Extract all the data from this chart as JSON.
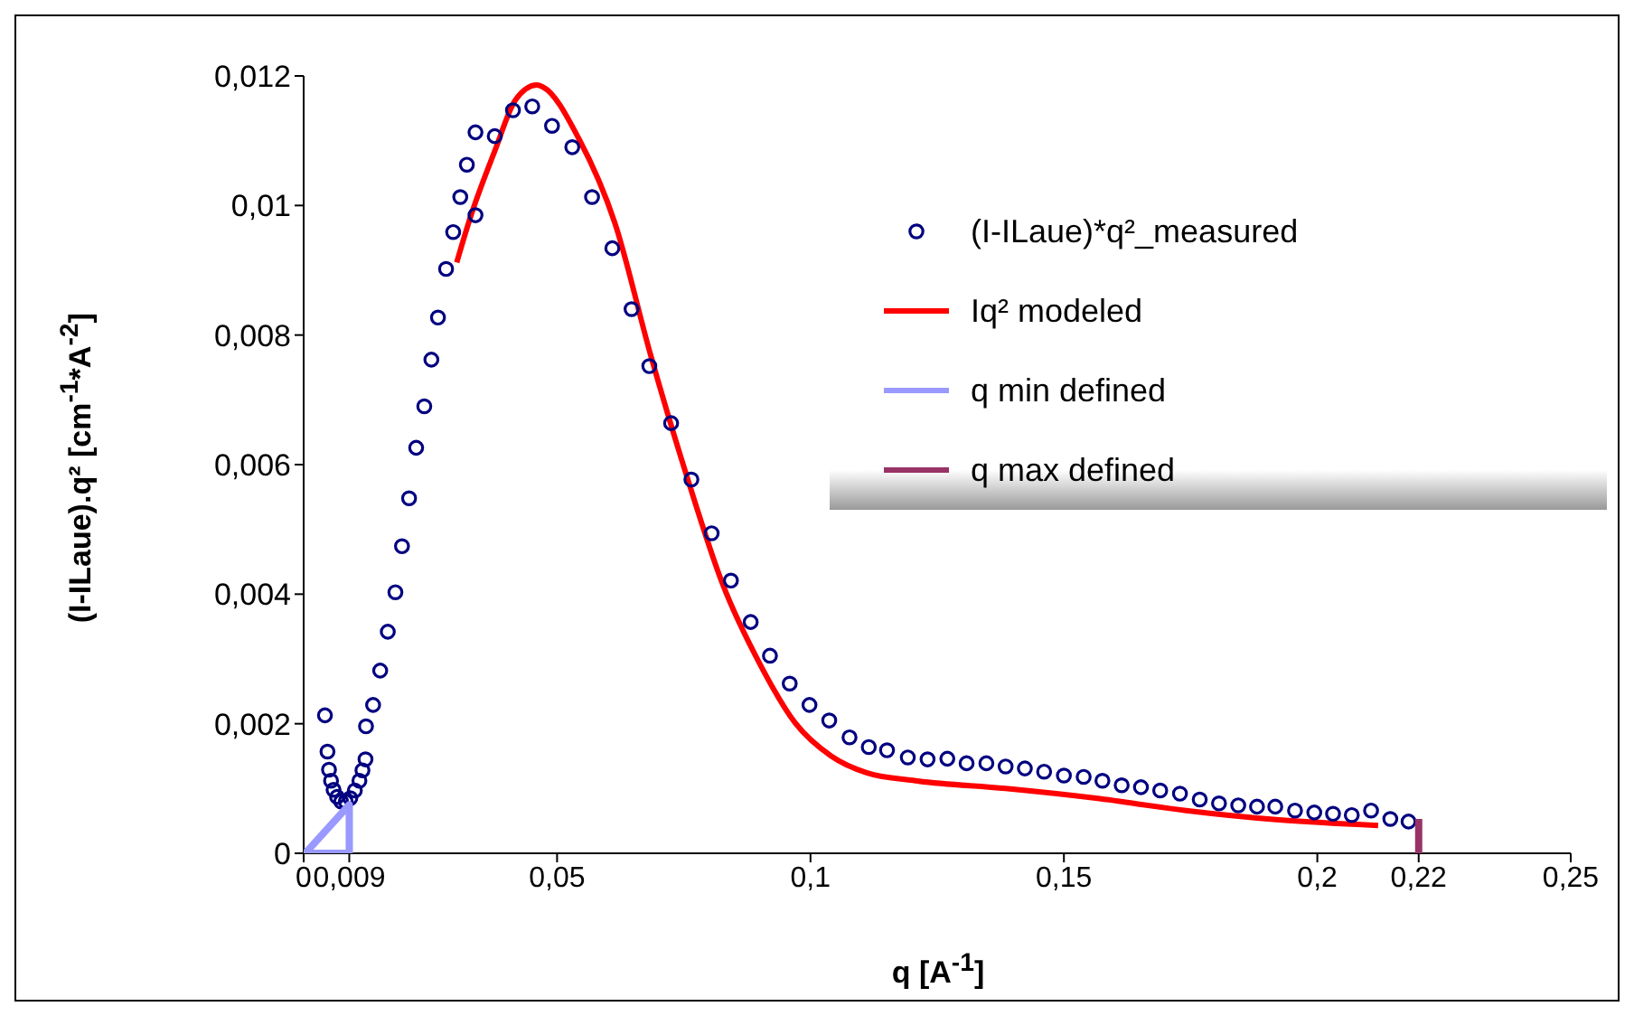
{
  "chart_data": {
    "type": "scatter",
    "xlabel": "q [A$^{-1}$]",
    "ylabel": "(I-ILaue).q² [cm$^{-1}$*A$^{-2}$]",
    "xlim": [
      0,
      0.25
    ],
    "xticks": [
      0,
      {
        "value": 0.009,
        "label": "0,009"
      },
      {
        "value": 0.05,
        "label": "0,05"
      },
      {
        "value": 0.1,
        "label": "0,1"
      },
      {
        "value": 0.15,
        "label": "0,15"
      },
      {
        "value": 0.2,
        "label": "0,2"
      },
      {
        "value": 0.22,
        "label": "0,22"
      },
      {
        "value": 0.25,
        "label": "0,25"
      }
    ],
    "ylim": [
      0,
      0.012
    ],
    "yticks": [
      0,
      {
        "value": 0.002,
        "label": "0,002"
      },
      {
        "value": 0.004,
        "label": "0,004"
      },
      {
        "value": 0.006,
        "label": "0,006"
      },
      {
        "value": 0.008,
        "label": "0,008"
      },
      {
        "value": 0.01,
        "label": "0,01"
      },
      {
        "value": 0.012,
        "label": "0,012"
      }
    ],
    "grid": false,
    "legend": "top right",
    "series": [
      {
        "name": "(I-ILaue)*q²_measured",
        "marker": "circle",
        "color": "#000080",
        "x": [
          0.0042,
          0.0047,
          0.005,
          0.0054,
          0.0059,
          0.0066,
          0.0074,
          0.0083,
          0.0092,
          0.0101,
          0.011,
          0.0116,
          0.0122,
          0.0123,
          0.0137,
          0.0151,
          0.0166,
          0.0181,
          0.0194,
          0.0208,
          0.0222,
          0.0238,
          0.0252,
          0.0265,
          0.0281,
          0.0295,
          0.0309,
          0.0322,
          0.0339,
          0.0339,
          0.0377,
          0.0413,
          0.0451,
          0.049,
          0.053,
          0.0569,
          0.0609,
          0.0647,
          0.0682,
          0.0725,
          0.0765,
          0.0805,
          0.0843,
          0.0882,
          0.092,
          0.0959,
          0.0998,
          0.1037,
          0.1077,
          0.1115,
          0.1151,
          0.1192,
          0.1231,
          0.127,
          0.1308,
          0.1347,
          0.1385,
          0.1423,
          0.1461,
          0.15,
          0.1539,
          0.1576,
          0.1614,
          0.1652,
          0.169,
          0.1729,
          0.1768,
          0.1806,
          0.1844,
          0.1881,
          0.1917,
          0.1956,
          0.1994,
          0.2031,
          0.2068,
          0.2106,
          0.2144,
          0.218
        ],
        "values": [
          0.00213,
          0.00157,
          0.00129,
          0.00112,
          0.00098,
          0.00087,
          0.0008,
          0.0008,
          0.00085,
          0.00097,
          0.00112,
          0.00128,
          0.00145,
          0.00196,
          0.00229,
          0.00282,
          0.00342,
          0.00403,
          0.00474,
          0.00548,
          0.00626,
          0.0069,
          0.00762,
          0.00827,
          0.00902,
          0.00959,
          0.01013,
          0.01063,
          0.00985,
          0.01113,
          0.01107,
          0.01147,
          0.01153,
          0.01123,
          0.0109,
          0.01013,
          0.00934,
          0.0084,
          0.00752,
          0.00664,
          0.00577,
          0.00494,
          0.00421,
          0.00357,
          0.00305,
          0.00262,
          0.00229,
          0.00205,
          0.00179,
          0.00164,
          0.00159,
          0.00148,
          0.00145,
          0.00146,
          0.00139,
          0.00139,
          0.00134,
          0.00131,
          0.00126,
          0.0012,
          0.00118,
          0.00112,
          0.00105,
          0.00102,
          0.00097,
          0.00092,
          0.00083,
          0.00077,
          0.00074,
          0.00072,
          0.00072,
          0.00066,
          0.00063,
          0.00061,
          0.00059,
          0.00066,
          0.00053,
          0.00049
        ]
      },
      {
        "name": "Iq² modeled",
        "type": "line",
        "line_style": "solid",
        "color": "#ff0000",
        "x": [
          0.0302,
          0.0329,
          0.0377,
          0.0418,
          0.046,
          0.0472,
          0.0543,
          0.0614,
          0.0685,
          0.0756,
          0.0827,
          0.0899,
          0.097,
          0.1041,
          0.1112,
          0.1207,
          0.1385,
          0.1563,
          0.1741,
          0.1919,
          0.212
        ],
        "values": [
          0.00912,
          0.00982,
          0.01084,
          0.01163,
          0.01186,
          0.01183,
          0.01103,
          0.00973,
          0.00768,
          0.00582,
          0.00415,
          0.00294,
          0.00201,
          0.0015,
          0.00124,
          0.00112,
          0.001,
          0.00085,
          0.00066,
          0.00052,
          0.00043
        ]
      },
      {
        "name": "q min defined",
        "type": "line",
        "line_style": "solid",
        "color": "#9999ff",
        "x": [
          0.0003,
          0.009,
          0.009,
          0
        ],
        "values": [
          0,
          0.00075,
          0,
          0
        ]
      },
      {
        "name": "q max defined",
        "type": "line",
        "line_style": "solid",
        "color": "#993366",
        "x": [
          0.22,
          0.22
        ],
        "values": [
          0,
          0.00053
        ]
      }
    ]
  }
}
